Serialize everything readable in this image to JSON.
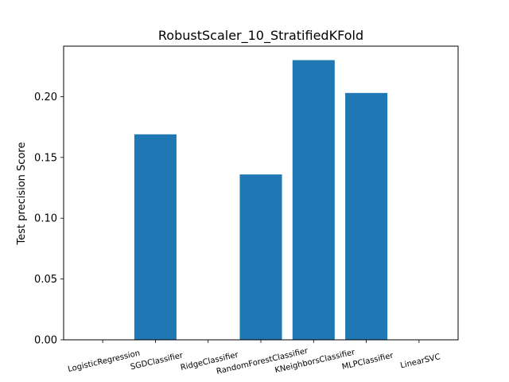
{
  "chart_data": {
    "type": "bar",
    "title": "RobustScaler_10_StratifiedKFold",
    "xlabel": "",
    "ylabel": "Test precision Score",
    "categories": [
      "LogisticRegression",
      "SGDClassifier",
      "RidgeClassifier",
      "RandomForestClassifier",
      "KNeighborsClassifier",
      "MLPClassifier",
      "LinearSVC"
    ],
    "values": [
      0.0,
      0.169,
      0.0,
      0.136,
      0.23,
      0.203,
      0.0
    ],
    "ylim": [
      0,
      0.2415
    ],
    "yticks": [
      0.0,
      0.05,
      0.1,
      0.15,
      0.2
    ],
    "ytick_labels": [
      "0.00",
      "0.05",
      "0.10",
      "0.15",
      "0.20"
    ],
    "bar_color": "#1f77b4",
    "grid": false,
    "legend": false
  }
}
